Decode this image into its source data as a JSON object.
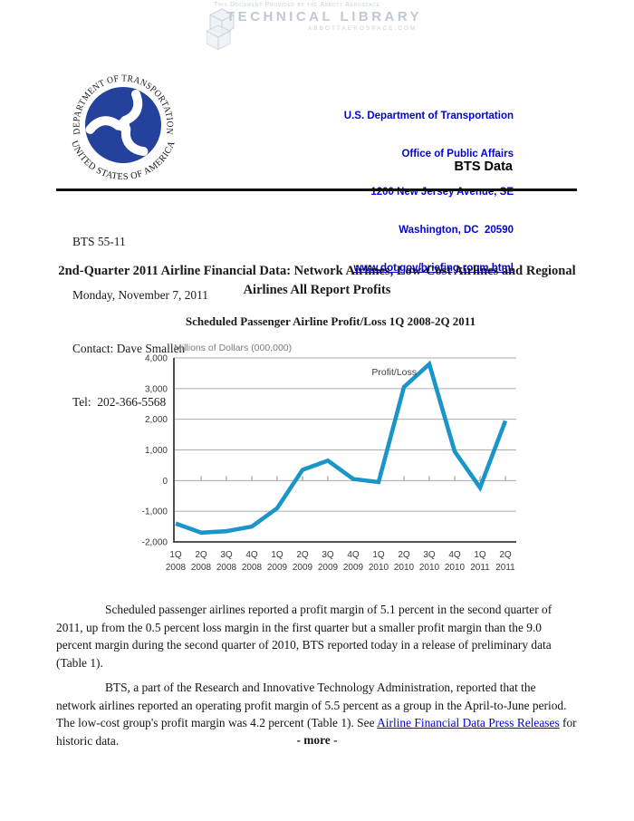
{
  "provider_banner": {
    "line1": "This Document Provided by the Abbott Aerospace",
    "line2": "TECHNICAL LIBRARY",
    "line3": "ABBOTTAEROSPACE.COM",
    "text_color": "#c3cbd5"
  },
  "letterhead": {
    "seal": {
      "top_text": "DEPARTMENT OF TRANSPORTATION",
      "bottom_text": "UNITED STATES OF AMERICA",
      "blue": "#24419b"
    },
    "address_lines": [
      "U.S. Department of Transportation",
      "Office of Public Affairs",
      "1200 New Jersey Avenue, SE",
      "Washington, DC  20590"
    ],
    "link_line": "www.dot.gov/briefing-room.html",
    "brand": "BTS Data",
    "blue": "#0202d8"
  },
  "release_info": {
    "lines": [
      "BTS 55-11",
      "Monday, November 7, 2011",
      "Contact: Dave Smallen",
      "Tel:  202-366-5568"
    ]
  },
  "headline": "2nd-Quarter 2011 Airline Financial Data: Network Airlines, Low-Cost Airlines and Regional Airlines All Report Profits",
  "chart_data": {
    "type": "line",
    "title": "Scheduled Passenger Airline Profit/Loss 1Q 2008-2Q 2011",
    "ylabel": "Millions of Dollars (000,000)",
    "series_label": "Profit/Loss",
    "categories": [
      "1Q 2008",
      "2Q 2008",
      "3Q 2008",
      "4Q 2008",
      "1Q 2009",
      "2Q 2009",
      "3Q 2009",
      "4Q 2009",
      "1Q 2010",
      "2Q 2010",
      "3Q 2010",
      "4Q 2010",
      "1Q 2011",
      "2Q 2011"
    ],
    "values": [
      -1400,
      -1700,
      -1650,
      -1500,
      -900,
      350,
      650,
      50,
      -50,
      3050,
      3800,
      950,
      -230,
      1950
    ],
    "ylim": [
      -2000,
      4000
    ],
    "ytick_step": 1000,
    "grid": true,
    "legend_position": "inside-top",
    "line_color": "#1a95c8"
  },
  "body": {
    "para1": "Scheduled passenger airlines reported a profit margin of 5.1 percent in the second quarter of 2011, up from the 0.5 percent loss margin in the first quarter but a smaller profit margin than the 9.0 percent margin during the second quarter of 2010, BTS reported today in a release of preliminary data (Table 1).",
    "para2_before": "BTS, a part of the Research and Innovative Technology Administration, reported that the network airlines reported an operating profit margin of 5.5 percent as a group in the April-to-June period. The low-cost group's profit margin was 4.2 percent (Table 1).  See ",
    "para2_link": "Airline Financial Data Press Releases",
    "para2_after": " for historic data.",
    "more": "- more -"
  }
}
